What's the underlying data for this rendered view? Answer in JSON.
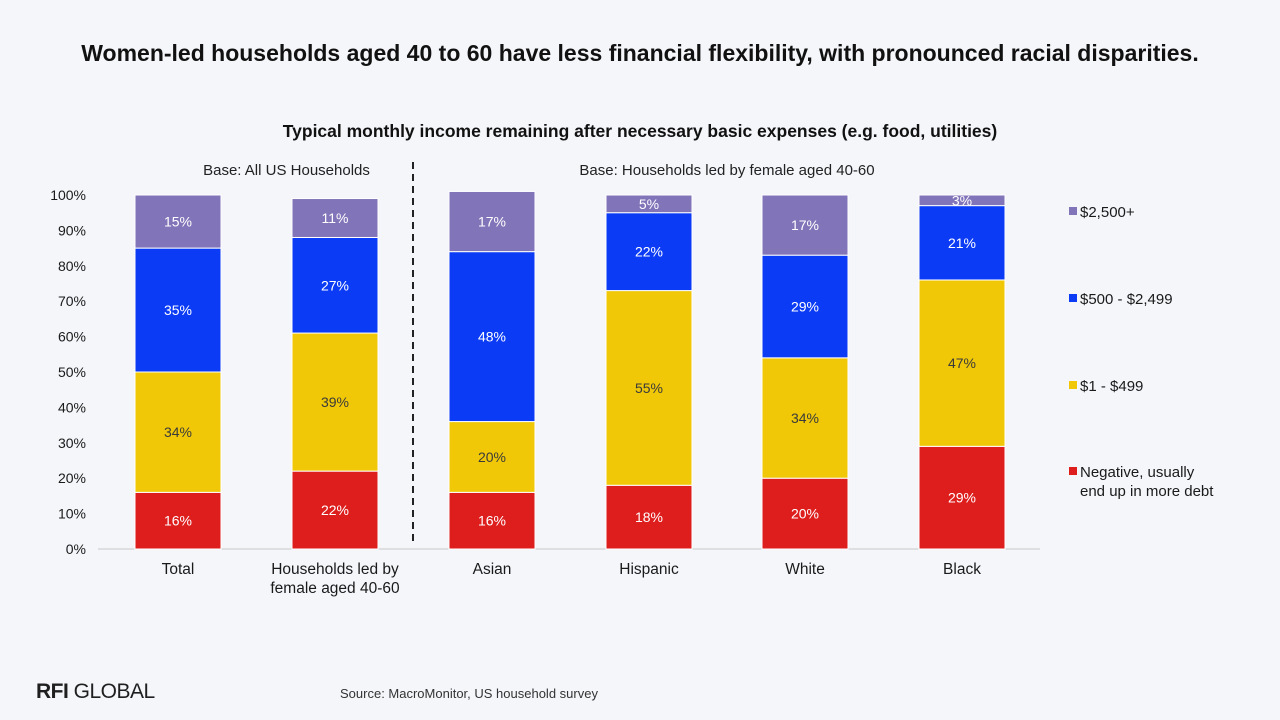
{
  "headline": "Women-led households aged 40 to 60 have less financial flexibility, with pronounced racial disparities.",
  "source": "Source: MacroMonitor, US household survey",
  "logo": {
    "part1": "RFI",
    "part2": "GLOBAL"
  },
  "chart_data": {
    "type": "bar",
    "stacked": true,
    "title": "Typical monthly income remaining after necessary basic expenses (e.g. food, utilities)",
    "group_labels": [
      "Base: All US Households",
      "Base: Households led by female aged 40-60"
    ],
    "group_divider_after_index": 1,
    "categories": [
      "Total",
      "Households led by female aged 40-60",
      "Asian",
      "Hispanic",
      "White",
      "Black"
    ],
    "category_label_lines": [
      [
        "Total"
      ],
      [
        "Households led by",
        "female aged 40-60"
      ],
      [
        "Asian"
      ],
      [
        "Hispanic"
      ],
      [
        "White"
      ],
      [
        "Black"
      ]
    ],
    "ylim": [
      0,
      100
    ],
    "yticks": [
      "0%",
      "10%",
      "20%",
      "30%",
      "40%",
      "50%",
      "60%",
      "70%",
      "80%",
      "90%",
      "100%"
    ],
    "legend_position": "right",
    "series": [
      {
        "name": "Negative, usually end up in more debt",
        "legend_lines": [
          "Negative, usually",
          "end up in more debt"
        ],
        "color": "#de1d1d",
        "values": [
          16,
          22,
          16,
          18,
          20,
          29
        ],
        "labels": [
          "16%",
          "22%",
          "16%",
          "18%",
          "20%",
          "29%"
        ]
      },
      {
        "name": "$1 - $499",
        "legend_lines": [
          "$1 - $499"
        ],
        "color": "#f0c808",
        "values": [
          34,
          39,
          20,
          55,
          34,
          47
        ],
        "labels": [
          "34%",
          "39%",
          "20%",
          "55%",
          "34%",
          "47%"
        ]
      },
      {
        "name": "$500 - $2,499",
        "legend_lines": [
          "$500 - $2,499"
        ],
        "color": "#0b3bf5",
        "values": [
          35,
          27,
          48,
          22,
          29,
          21
        ],
        "labels": [
          "35%",
          "27%",
          "48%",
          "22%",
          "29%",
          "21%"
        ]
      },
      {
        "name": "$2,500+",
        "legend_lines": [
          "$2,500+"
        ],
        "color": "#8274b8",
        "values": [
          15,
          11,
          17,
          5,
          17,
          3
        ],
        "labels": [
          "15%",
          "11%",
          "17%",
          "5%",
          "17%",
          "3%"
        ]
      }
    ]
  }
}
